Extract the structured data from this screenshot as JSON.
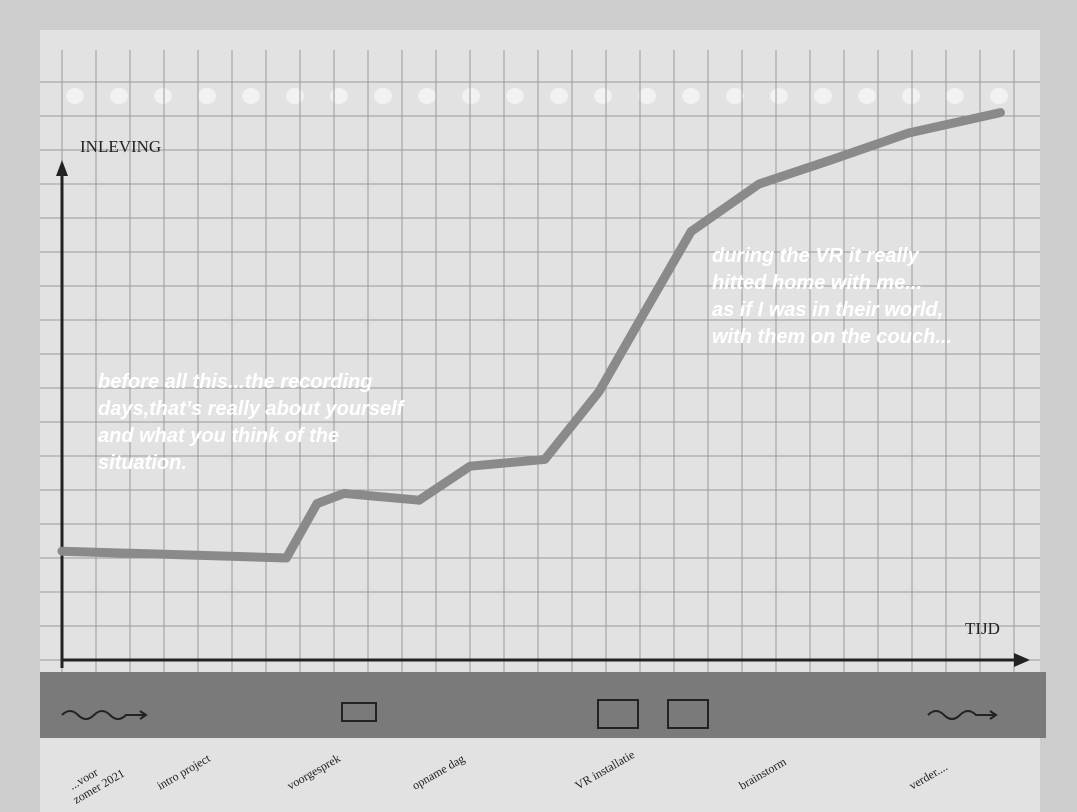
{
  "chart_data": {
    "type": "line",
    "y_label": "INLEVING",
    "x_label": "TIJD",
    "x": [
      0,
      6.6,
      7.5,
      8.3,
      10.5,
      12,
      14.2,
      15.8,
      17,
      18.5,
      20.5,
      22.6,
      24.9,
      27.6
    ],
    "values": [
      3.2,
      3.0,
      4.6,
      4.9,
      4.7,
      5.7,
      5.9,
      7.9,
      10,
      12.6,
      14,
      14.7,
      15.5,
      16.1
    ],
    "color": "#8a8a8a",
    "xlim": [
      0,
      28.5
    ],
    "ylim": [
      0,
      17
    ],
    "grid": true,
    "annotations": [
      {
        "lines": [
          "before all this...the recording",
          "days,that’s really about yourself",
          "and what you think of the",
          "situation."
        ]
      },
      {
        "lines": [
          "during the VR it really",
          "hitted home with me...",
          "as if I was in their world,",
          "with them on the couch..."
        ]
      }
    ],
    "phases": [
      [
        "...voor",
        "zomer 2021"
      ],
      [
        "intro project"
      ],
      [
        "voorgesprek"
      ],
      [
        "opname dag"
      ],
      [
        "VR installatie"
      ],
      [
        "brainstorm"
      ],
      [
        "verder...."
      ]
    ]
  }
}
